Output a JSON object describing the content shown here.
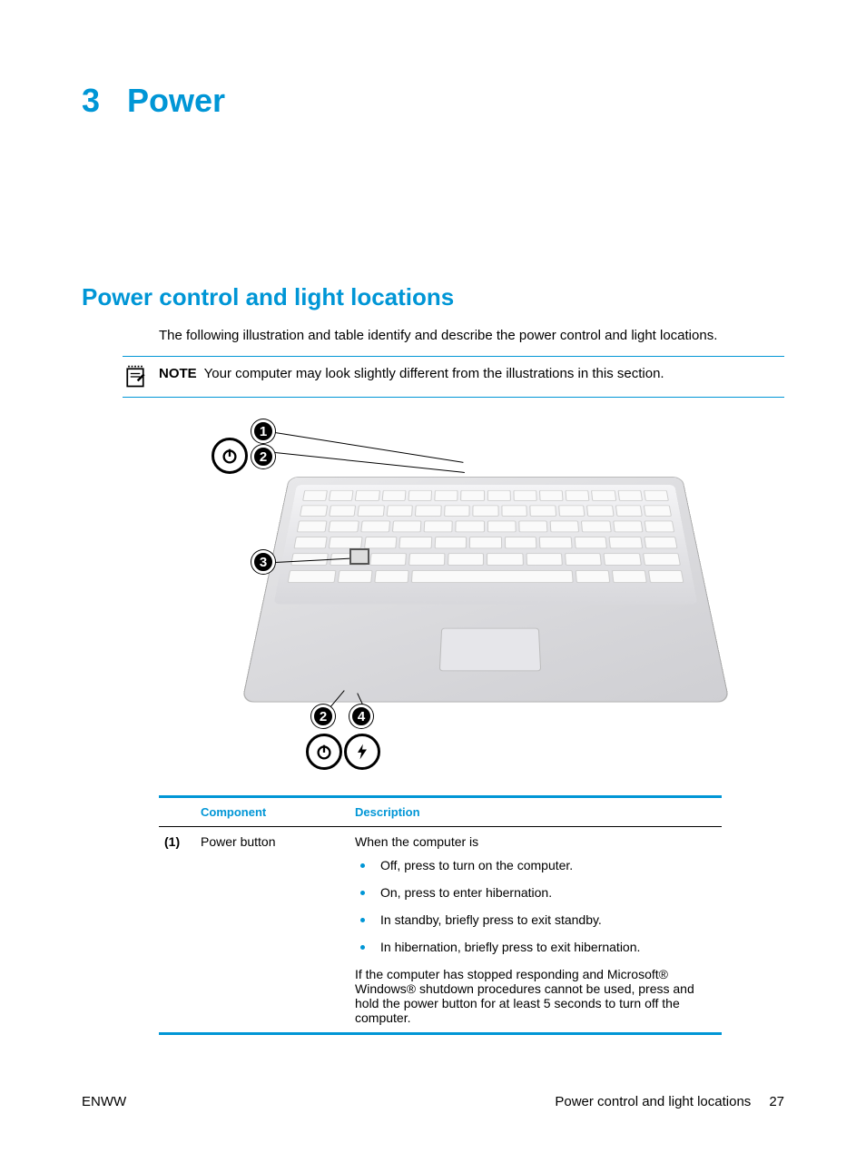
{
  "colors": {
    "accent": "#0096d6",
    "note_border": "#0096d6",
    "table_border": "#0096d6",
    "bullet": "#0096d6",
    "text": "#000000",
    "background": "#ffffff"
  },
  "chapter": {
    "number": "3",
    "title": "Power"
  },
  "section": {
    "title": "Power control and light locations"
  },
  "intro": "The following illustration and table identify and describe the power control and light locations.",
  "note": {
    "label": "NOTE",
    "text": "Your computer may look slightly different from the illustrations in this section."
  },
  "illustration": {
    "callouts": [
      "1",
      "2",
      "3",
      "2",
      "4"
    ],
    "icons": [
      "power-icon",
      "power-icon",
      "bolt-icon"
    ]
  },
  "table": {
    "headers": {
      "component": "Component",
      "description": "Description"
    },
    "rows": [
      {
        "num": "(1)",
        "component": "Power button",
        "desc_intro": "When the computer is",
        "bullets": [
          "Off, press to turn on the computer.",
          "On, press to enter hibernation.",
          "In standby, briefly press to exit standby.",
          "In hibernation, briefly press to exit hibernation."
        ],
        "desc_outro": "If the computer has stopped responding and Microsoft® Windows® shutdown procedures cannot be used, press and hold the power button for at least 5 seconds to turn off the computer."
      }
    ]
  },
  "footer": {
    "left": "ENWW",
    "right_text": "Power control and light locations",
    "page_num": "27"
  }
}
